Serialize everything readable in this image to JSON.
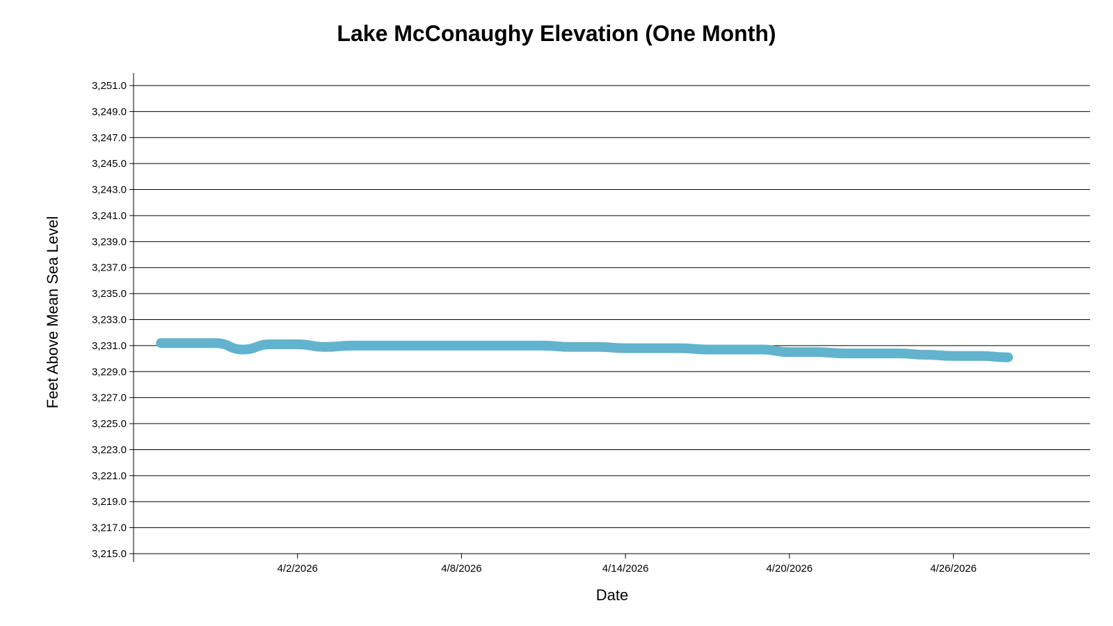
{
  "chart_data": {
    "type": "line",
    "title": "Lake McConaughy Elevation (One Month)",
    "xlabel": "Date",
    "ylabel": "Feet Above Mean Sea Level",
    "ylim": [
      3215.0,
      3251.0
    ],
    "y_ticks": [
      "3,251.0",
      "3,249.0",
      "3,247.0",
      "3,245.0",
      "3,243.0",
      "3,241.0",
      "3,239.0",
      "3,237.0",
      "3,235.0",
      "3,233.0",
      "3,231.0",
      "3,229.0",
      "3,227.0",
      "3,225.0",
      "3,223.0",
      "3,221.0",
      "3,219.0",
      "3,217.0",
      "3,215.0"
    ],
    "xlim": [
      "2026-03-27",
      "2026-05-01"
    ],
    "x_ticks": [
      {
        "date": "2026-04-02",
        "label": "4/2/2026"
      },
      {
        "date": "2026-04-08",
        "label": "4/8/2026"
      },
      {
        "date": "2026-04-14",
        "label": "4/14/2026"
      },
      {
        "date": "2026-04-20",
        "label": "4/20/2026"
      },
      {
        "date": "2026-04-26",
        "label": "4/26/2026"
      }
    ],
    "grid": true,
    "line_color": "#62b3cd",
    "series": [
      {
        "x": [
          "2026-03-28",
          "2026-03-29",
          "2026-03-30",
          "2026-03-31",
          "2026-04-01",
          "2026-04-02",
          "2026-04-03",
          "2026-04-04",
          "2026-04-05",
          "2026-04-06",
          "2026-04-07",
          "2026-04-08",
          "2026-04-09",
          "2026-04-10",
          "2026-04-11",
          "2026-04-12",
          "2026-04-13",
          "2026-04-14",
          "2026-04-15",
          "2026-04-16",
          "2026-04-17",
          "2026-04-18",
          "2026-04-19",
          "2026-04-20",
          "2026-04-21",
          "2026-04-22",
          "2026-04-23",
          "2026-04-24",
          "2026-04-25",
          "2026-04-26",
          "2026-04-27",
          "2026-04-28"
        ],
        "y": [
          3231.2,
          3231.2,
          3231.2,
          3230.7,
          3231.1,
          3231.1,
          3230.9,
          3231.0,
          3231.0,
          3231.0,
          3231.0,
          3231.0,
          3231.0,
          3231.0,
          3231.0,
          3230.9,
          3230.9,
          3230.8,
          3230.8,
          3230.8,
          3230.7,
          3230.7,
          3230.7,
          3230.5,
          3230.5,
          3230.4,
          3230.4,
          3230.4,
          3230.3,
          3230.2,
          3230.2,
          3230.1
        ]
      }
    ]
  }
}
